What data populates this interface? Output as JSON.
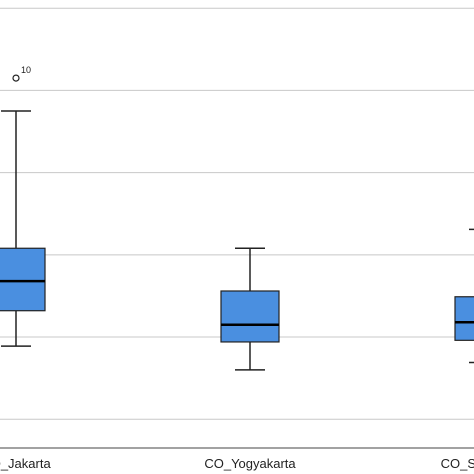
{
  "chart_data": {
    "type": "boxplot",
    "categories": [
      "CO_Jakarta",
      "CO_Yogyakarta",
      "CO_Semarang"
    ],
    "boxes": [
      {
        "category": "CO_Jakarta",
        "min": 1.39,
        "q1": 1.82,
        "median": 2.18,
        "q3": 2.58,
        "max": 4.25,
        "outliers": [
          {
            "value": 4.65,
            "label": "10"
          }
        ]
      },
      {
        "category": "CO_Yogyakarta",
        "min": 1.1,
        "q1": 1.44,
        "median": 1.65,
        "q3": 2.06,
        "max": 2.58,
        "outliers": []
      },
      {
        "category": "CO_Semarang",
        "min": 1.19,
        "q1": 1.46,
        "median": 1.68,
        "q3": 1.99,
        "max": 2.81,
        "outliers": []
      }
    ],
    "ylim": [
      0.15,
      5.6
    ],
    "gridlines": [
      0.5,
      1.5,
      2.5,
      3.5,
      4.5,
      5.5
    ],
    "grid": true,
    "box_color": "#4a8fe0",
    "title": "",
    "xlabel": "",
    "ylabel": ""
  }
}
